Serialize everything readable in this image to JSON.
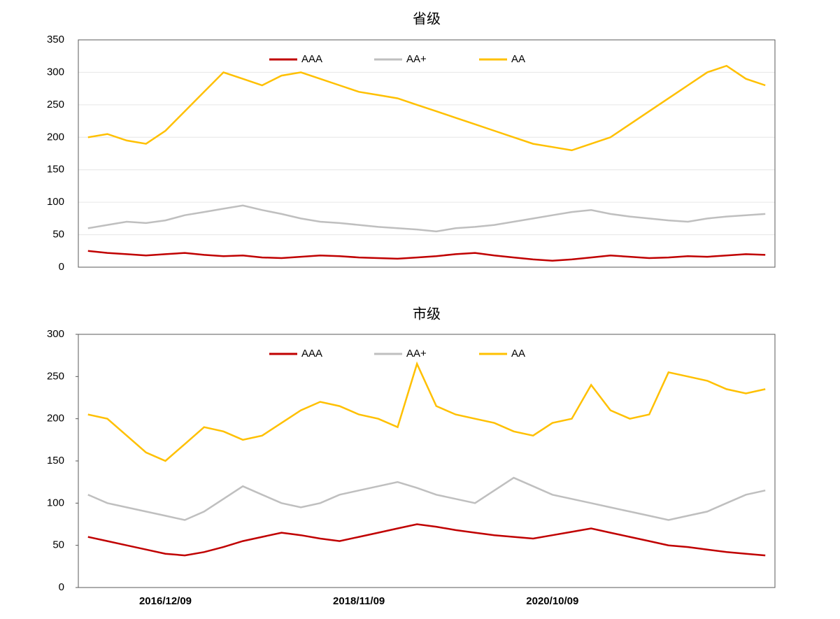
{
  "chart_data": [
    {
      "type": "line",
      "title": "省级",
      "categories": [
        null,
        null,
        null,
        null,
        null,
        null,
        null,
        null,
        null,
        null,
        null,
        null,
        null,
        null,
        null,
        null,
        null,
        null,
        null,
        null,
        null,
        null,
        null,
        null,
        null,
        null,
        null,
        null,
        null,
        null,
        null,
        null,
        null,
        null,
        null,
        null
      ],
      "ylim": [
        0,
        350
      ],
      "yticks": [
        0,
        50,
        100,
        150,
        200,
        250,
        300,
        350
      ],
      "grid": true,
      "series": [
        {
          "name": "AAA",
          "color": "#c00000",
          "values": [
            25,
            22,
            20,
            18,
            20,
            22,
            19,
            17,
            18,
            15,
            14,
            16,
            18,
            17,
            15,
            14,
            13,
            15,
            17,
            20,
            22,
            18,
            15,
            12,
            10,
            12,
            15,
            18,
            16,
            14,
            15,
            17,
            16,
            18,
            20,
            19
          ]
        },
        {
          "name": "AA+",
          "color": "#bfbfbf",
          "values": [
            60,
            65,
            70,
            68,
            72,
            80,
            85,
            90,
            95,
            88,
            82,
            75,
            70,
            68,
            65,
            62,
            60,
            58,
            55,
            60,
            62,
            65,
            70,
            75,
            80,
            85,
            88,
            82,
            78,
            75,
            72,
            70,
            75,
            78,
            80,
            82
          ]
        },
        {
          "name": "AA",
          "color": "#ffc000",
          "values": [
            200,
            205,
            195,
            190,
            210,
            240,
            270,
            300,
            290,
            280,
            295,
            300,
            290,
            280,
            270,
            265,
            260,
            250,
            240,
            230,
            220,
            210,
            200,
            190,
            185,
            180,
            190,
            200,
            220,
            240,
            260,
            280,
            300,
            310,
            290,
            280
          ]
        }
      ]
    },
    {
      "type": "line",
      "title": "市级",
      "categories": [
        null,
        null,
        null,
        null,
        "2016/12/09",
        null,
        null,
        null,
        null,
        null,
        null,
        null,
        null,
        null,
        "2018/11/09",
        null,
        null,
        null,
        null,
        null,
        null,
        null,
        null,
        null,
        "2020/10/09",
        null,
        null,
        null,
        null,
        null,
        null,
        null,
        null,
        null,
        null,
        null
      ],
      "ylim": [
        0,
        300
      ],
      "yticks": [
        0,
        50,
        100,
        150,
        200,
        250,
        300
      ],
      "grid": false,
      "series": [
        {
          "name": "AAA",
          "color": "#c00000",
          "values": [
            60,
            55,
            50,
            45,
            40,
            38,
            42,
            48,
            55,
            60,
            65,
            62,
            58,
            55,
            60,
            65,
            70,
            75,
            72,
            68,
            65,
            62,
            60,
            58,
            62,
            66,
            70,
            65,
            60,
            55,
            50,
            48,
            45,
            42,
            40,
            38
          ]
        },
        {
          "name": "AA+",
          "color": "#bfbfbf",
          "values": [
            110,
            100,
            95,
            90,
            85,
            80,
            90,
            105,
            120,
            110,
            100,
            95,
            100,
            110,
            115,
            120,
            125,
            118,
            110,
            105,
            100,
            115,
            130,
            120,
            110,
            105,
            100,
            95,
            90,
            85,
            80,
            85,
            90,
            100,
            110,
            115
          ]
        },
        {
          "name": "AA",
          "color": "#ffc000",
          "values": [
            205,
            200,
            180,
            160,
            150,
            170,
            190,
            185,
            175,
            180,
            195,
            210,
            220,
            215,
            205,
            200,
            190,
            265,
            215,
            205,
            200,
            195,
            185,
            180,
            195,
            200,
            240,
            210,
            200,
            205,
            255,
            250,
            245,
            235,
            230,
            235
          ]
        }
      ]
    }
  ]
}
